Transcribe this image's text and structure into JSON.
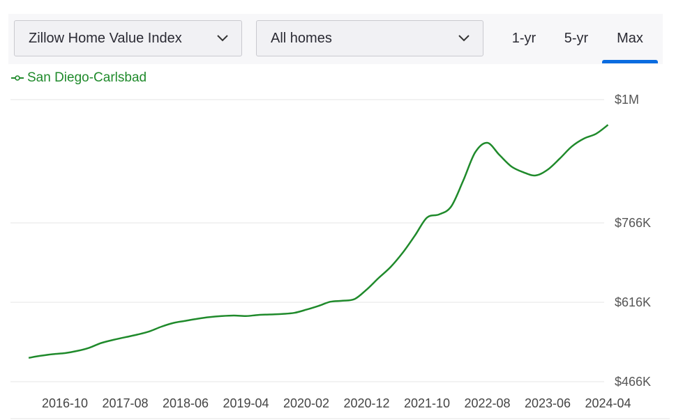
{
  "controls": {
    "metric_dropdown": "Zillow Home Value Index",
    "homes_dropdown": "All homes",
    "tabs": [
      {
        "label": "1-yr",
        "active": false
      },
      {
        "label": "5-yr",
        "active": false
      },
      {
        "label": "Max",
        "active": true
      }
    ]
  },
  "colors": {
    "series": "#1f8a2b",
    "active_tab": "#0a6ce0",
    "gridline": "#e6e6e6"
  },
  "icons": {
    "dropdown": "chevron-down-icon",
    "legend": "line-marker-icon"
  },
  "chart_data": {
    "type": "line",
    "title": "",
    "xlabel": "",
    "ylabel": "",
    "legend_placement": "top-left",
    "grid": true,
    "x_ticks": [
      "2016-10",
      "2017-08",
      "2018-06",
      "2019-04",
      "2020-02",
      "2020-12",
      "2021-10",
      "2022-08",
      "2023-06",
      "2024-04"
    ],
    "y_ticks": [
      {
        "label": "$1M",
        "value": 1000000
      },
      {
        "label": "$766K",
        "value": 766000
      },
      {
        "label": "$616K",
        "value": 616000
      },
      {
        "label": "$466K",
        "value": 466000
      }
    ],
    "y_axis_side": "right",
    "series": [
      {
        "name": "San Diego-Carlsbad",
        "points": [
          [
            "2016-04",
            511000
          ],
          [
            "2016-06",
            515000
          ],
          [
            "2016-08",
            518000
          ],
          [
            "2016-10",
            520000
          ],
          [
            "2016-12",
            524000
          ],
          [
            "2017-02",
            530000
          ],
          [
            "2017-04",
            539000
          ],
          [
            "2017-06",
            545000
          ],
          [
            "2017-08",
            550000
          ],
          [
            "2017-10",
            555000
          ],
          [
            "2017-12",
            561000
          ],
          [
            "2018-02",
            570000
          ],
          [
            "2018-04",
            577000
          ],
          [
            "2018-06",
            581000
          ],
          [
            "2018-08",
            585000
          ],
          [
            "2018-10",
            588000
          ],
          [
            "2018-12",
            590000
          ],
          [
            "2019-02",
            591000
          ],
          [
            "2019-04",
            590000
          ],
          [
            "2019-06",
            592000
          ],
          [
            "2019-08",
            593000
          ],
          [
            "2019-10",
            594000
          ],
          [
            "2019-12",
            596000
          ],
          [
            "2020-02",
            602000
          ],
          [
            "2020-04",
            609000
          ],
          [
            "2020-06",
            617000
          ],
          [
            "2020-08",
            619000
          ],
          [
            "2020-10",
            622000
          ],
          [
            "2020-12",
            640000
          ],
          [
            "2021-02",
            662000
          ],
          [
            "2021-04",
            683000
          ],
          [
            "2021-06",
            710000
          ],
          [
            "2021-08",
            742000
          ],
          [
            "2021-10",
            776000
          ],
          [
            "2021-12",
            782000
          ],
          [
            "2022-02",
            797000
          ],
          [
            "2022-04",
            846000
          ],
          [
            "2022-06",
            900000
          ],
          [
            "2022-08",
            918000
          ],
          [
            "2022-10",
            895000
          ],
          [
            "2022-12",
            873000
          ],
          [
            "2023-02",
            862000
          ],
          [
            "2023-04",
            856000
          ],
          [
            "2023-06",
            867000
          ],
          [
            "2023-08",
            888000
          ],
          [
            "2023-10",
            911000
          ],
          [
            "2023-12",
            926000
          ],
          [
            "2024-02",
            935000
          ],
          [
            "2024-04",
            952000
          ]
        ]
      }
    ]
  }
}
